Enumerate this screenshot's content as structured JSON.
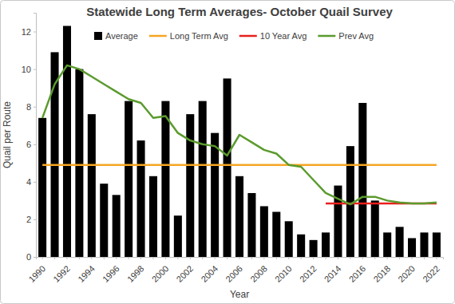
{
  "chart_data": {
    "type": "bar",
    "title": "Statewide Long Term Averages- October Quail Survey",
    "xlabel": "Year",
    "ylabel": "Quail per Route",
    "categories": [
      "1990",
      null,
      "1992",
      null,
      "1994",
      null,
      "1996",
      null,
      "1998",
      null,
      "2000",
      null,
      "2002",
      null,
      "2004",
      null,
      "2006",
      null,
      "2008",
      null,
      "2010",
      null,
      "2012",
      null,
      "2014",
      null,
      "2016",
      null,
      "2018",
      null,
      "2020",
      null,
      "2022"
    ],
    "series": [
      {
        "name": "Average",
        "type": "bar",
        "color": "#000000",
        "values": [
          7.4,
          10.9,
          12.3,
          10.0,
          7.6,
          3.9,
          3.3,
          8.3,
          6.2,
          4.3,
          8.3,
          2.2,
          7.6,
          8.3,
          6.6,
          9.5,
          4.3,
          3.4,
          2.7,
          2.4,
          1.9,
          1.2,
          0.9,
          1.3,
          3.8,
          5.9,
          8.2,
          3.0,
          1.3,
          1.6,
          1.0,
          1.3,
          1.3
        ]
      },
      {
        "name": "Long Term Avg",
        "type": "line",
        "color": "#f5a623",
        "values": [
          4.9,
          4.9,
          4.9,
          4.9,
          4.9,
          4.9,
          4.9,
          4.9,
          4.9,
          4.9,
          4.9,
          4.9,
          4.9,
          4.9,
          4.9,
          4.9,
          4.9,
          4.9,
          4.9,
          4.9,
          4.9,
          4.9,
          4.9,
          4.9,
          4.9,
          4.9,
          4.9,
          4.9,
          4.9,
          4.9,
          4.9,
          4.9,
          4.9
        ]
      },
      {
        "name": "10 Year Avg",
        "type": "line",
        "color": "#e8201c",
        "values": [
          null,
          null,
          null,
          null,
          null,
          null,
          null,
          null,
          null,
          null,
          null,
          null,
          null,
          null,
          null,
          null,
          null,
          null,
          null,
          null,
          null,
          null,
          null,
          2.85,
          2.85,
          2.85,
          2.85,
          2.85,
          2.85,
          2.85,
          2.85,
          2.85,
          2.85
        ]
      },
      {
        "name": "Prev Avg",
        "type": "line",
        "color": "#5b9b2e",
        "values": [
          7.4,
          9.2,
          10.2,
          10.0,
          9.6,
          9.2,
          8.8,
          8.4,
          8.2,
          7.4,
          7.5,
          6.6,
          6.2,
          6.0,
          5.9,
          5.4,
          6.5,
          6.1,
          5.7,
          5.5,
          4.9,
          4.8,
          4.1,
          3.4,
          3.1,
          2.8,
          3.2,
          3.2,
          3.0,
          2.9,
          2.85,
          2.85,
          2.9
        ]
      }
    ],
    "ylim": [
      0,
      13
    ],
    "yticks": [
      0,
      2,
      4,
      6,
      8,
      10,
      12
    ],
    "grid": false,
    "legend": "top"
  }
}
